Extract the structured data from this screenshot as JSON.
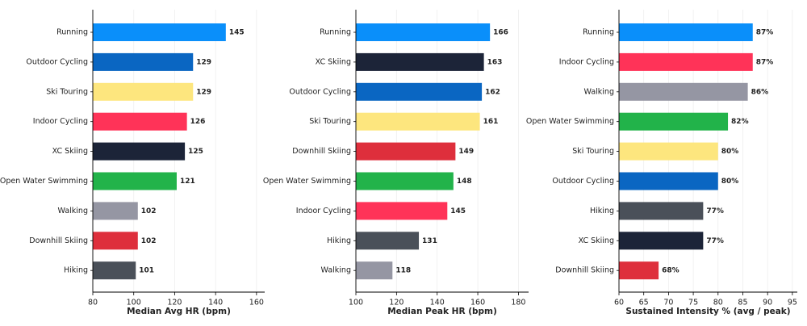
{
  "chart_data": [
    {
      "type": "bar",
      "orientation": "horizontal",
      "xlabel": "Median Avg HR (bpm)",
      "categories": [
        "Running",
        "Outdoor Cycling",
        "Ski Touring",
        "Indoor Cycling",
        "XC Skiing",
        "Open Water Swimming",
        "Walking",
        "Downhill Skiing",
        "Hiking"
      ],
      "values": [
        145,
        129,
        129,
        126,
        125,
        121,
        102,
        102,
        101
      ],
      "colors": [
        "#0a8ffa",
        "#0a66c2",
        "#fde67e",
        "#ff3358",
        "#1c2438",
        "#22b34a",
        "#9596a3",
        "#de2f3c",
        "#4a5059"
      ],
      "xlim": [
        80,
        164
      ],
      "xticks": [
        80,
        100,
        120,
        140,
        160
      ],
      "grid": true
    },
    {
      "type": "bar",
      "orientation": "horizontal",
      "xlabel": "Median Peak HR (bpm)",
      "categories": [
        "Running",
        "XC Skiing",
        "Outdoor Cycling",
        "Ski Touring",
        "Downhill Skiing",
        "Open Water Swimming",
        "Indoor Cycling",
        "Hiking",
        "Walking"
      ],
      "values": [
        166,
        163,
        162,
        161,
        149,
        148,
        145,
        131,
        118
      ],
      "colors": [
        "#0a8ffa",
        "#1c2438",
        "#0a66c2",
        "#fde67e",
        "#de2f3c",
        "#22b34a",
        "#ff3358",
        "#4a5059",
        "#9596a3"
      ],
      "xlim": [
        100,
        185
      ],
      "xticks": [
        100,
        120,
        140,
        160,
        180
      ],
      "grid": true
    },
    {
      "type": "bar",
      "orientation": "horizontal",
      "xlabel": "Sustained Intensity %  (avg / peak)",
      "categories": [
        "Running",
        "Indoor Cycling",
        "Walking",
        "Open Water Swimming",
        "Ski Touring",
        "Outdoor Cycling",
        "Hiking",
        "XC Skiing",
        "Downhill Skiing"
      ],
      "values": [
        87,
        87,
        86,
        82,
        80,
        80,
        77,
        77,
        68
      ],
      "value_labels": [
        "87%",
        "87%",
        "86%",
        "82%",
        "80%",
        "80%",
        "77%",
        "77%",
        "68%"
      ],
      "colors": [
        "#0a8ffa",
        "#ff3358",
        "#9596a3",
        "#22b34a",
        "#fde67e",
        "#0a66c2",
        "#4a5059",
        "#1c2438",
        "#de2f3c"
      ],
      "xlim": [
        60,
        96
      ],
      "xticks": [
        60,
        65,
        70,
        75,
        80,
        85,
        90,
        95
      ],
      "grid": true
    }
  ]
}
